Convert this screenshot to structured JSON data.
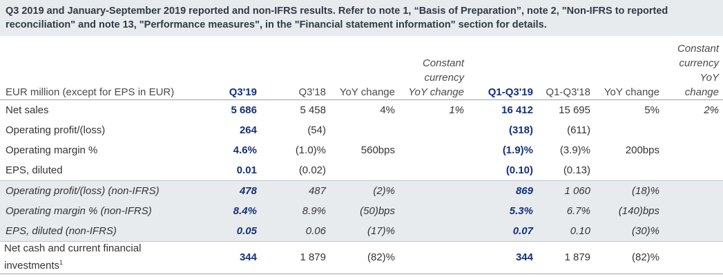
{
  "title": "Q3 2019 and January-September 2019 reported and non-IFRS results. Refer to note 1, “Basis of Preparation”, note 2, \"Non-IFRS to reported reconciliation\" and note 13, \"Performance measures\", in the \"Financial statement information\" section for details.",
  "headers": {
    "label": "EUR million (except for EPS in EUR)",
    "q3_19": "Q3'19",
    "q3_18": "Q3'18",
    "yoy": "YoY change",
    "cc": "Constant currency YoY change",
    "ytd_19": "Q1-Q3'19",
    "ytd_18": "Q1-Q3'18",
    "yoy2": "YoY change",
    "cc2": "Constant currency YoY change"
  },
  "rows": [
    {
      "label": "Net sales",
      "q3_19": "5 686",
      "q3_18": "5 458",
      "yoy": "4%",
      "cc": "1%",
      "ytd_19": "16 412",
      "ytd_18": "15 695",
      "yoy2": "5%",
      "cc2": "2%"
    },
    {
      "label": "Operating profit/(loss)",
      "q3_19": "264",
      "q3_18": "(54)",
      "yoy": "",
      "cc": "",
      "ytd_19": "(318)",
      "ytd_18": "(611)",
      "yoy2": "",
      "cc2": ""
    },
    {
      "label": "Operating margin %",
      "q3_19": "4.6%",
      "q3_18": "(1.0)%",
      "yoy": "560bps",
      "cc": "",
      "ytd_19": "(1.9)%",
      "ytd_18": "(3.9)%",
      "yoy2": "200bps",
      "cc2": ""
    },
    {
      "label": "EPS, diluted",
      "q3_19": "0.01",
      "q3_18": "(0.02)",
      "yoy": "",
      "cc": "",
      "ytd_19": "(0.10)",
      "ytd_18": "(0.13)",
      "yoy2": "",
      "cc2": ""
    },
    {
      "label": "Operating profit/(loss) (non-IFRS)",
      "q3_19": "478",
      "q3_18": "487",
      "yoy": "(2)%",
      "cc": "",
      "ytd_19": "869",
      "ytd_18": "1 060",
      "yoy2": "(18)%",
      "cc2": ""
    },
    {
      "label": "Operating margin % (non-IFRS)",
      "q3_19": "8.4%",
      "q3_18": "8.9%",
      "yoy": "(50)bps",
      "cc": "",
      "ytd_19": "5.3%",
      "ytd_18": "6.7%",
      "yoy2": "(140)bps",
      "cc2": ""
    },
    {
      "label": "EPS, diluted (non-IFRS)",
      "q3_19": "0.05",
      "q3_18": "0.06",
      "yoy": "(17)%",
      "cc": "",
      "ytd_19": "0.07",
      "ytd_18": "0.10",
      "yoy2": "(30)%",
      "cc2": ""
    },
    {
      "label": "Net cash and current financial investments",
      "footnote": "1",
      "q3_19": "344",
      "q3_18": "1 879",
      "yoy": "(82)%",
      "cc": "",
      "ytd_19": "344",
      "ytd_18": "1 879",
      "yoy2": "(82)%",
      "cc2": ""
    }
  ]
}
